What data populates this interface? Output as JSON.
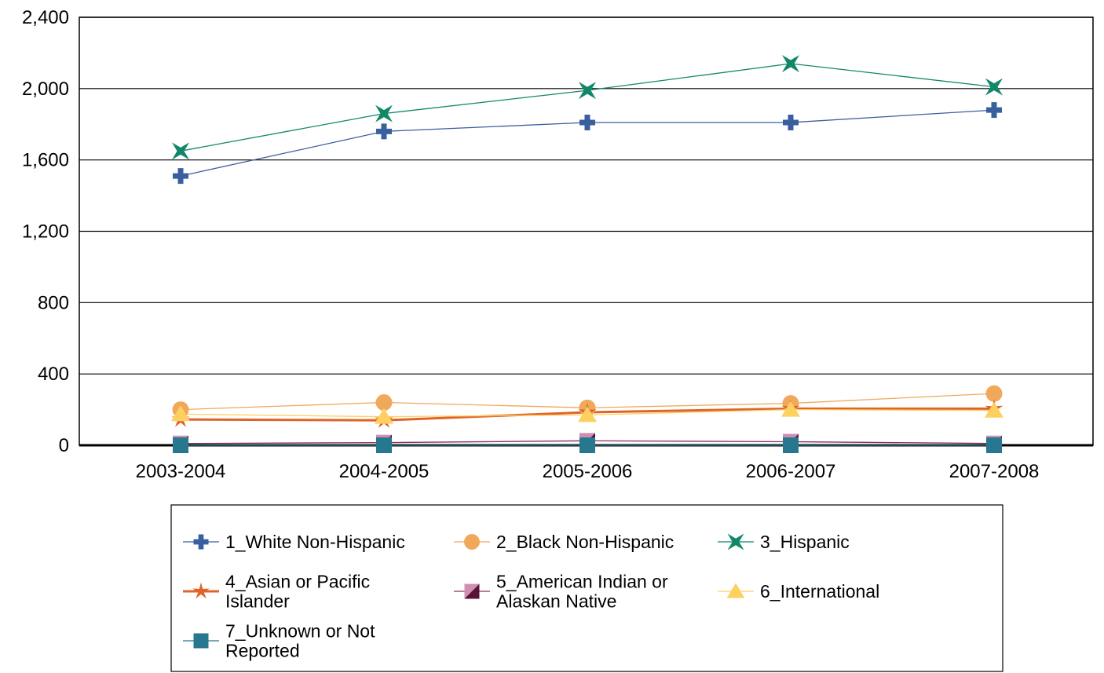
{
  "chart_data": {
    "type": "line",
    "title": "",
    "xlabel": "",
    "ylabel": "",
    "categories": [
      "2003-2004",
      "2004-2005",
      "2005-2006",
      "2006-2007",
      "2007-2008"
    ],
    "ylim": [
      0,
      2400
    ],
    "yticks": [
      0,
      400,
      800,
      1200,
      1600,
      2000,
      2400
    ],
    "ytick_labels": [
      "0",
      "400",
      "800",
      "1,200",
      "1,600",
      "2,000",
      "2,400"
    ],
    "grid": "horizontal",
    "legend_position": "bottom",
    "series": [
      {
        "name": "1_White Non-Hispanic",
        "name_lines": [
          "1_White Non-Hispanic"
        ],
        "color": "#3a5f9e",
        "marker": "plus",
        "values": [
          1510,
          1760,
          1810,
          1810,
          1880
        ]
      },
      {
        "name": "2_Black Non-Hispanic",
        "name_lines": [
          "2_Black Non-Hispanic"
        ],
        "color": "#f0a95b",
        "marker": "circle",
        "values": [
          200,
          240,
          210,
          235,
          290
        ]
      },
      {
        "name": "3_Hispanic",
        "name_lines": [
          "3_Hispanic"
        ],
        "color": "#11876a",
        "marker": "star4",
        "values": [
          1650,
          1860,
          1990,
          2140,
          2010
        ]
      },
      {
        "name": "4_Asian or Pacific Islander",
        "name_lines": [
          "4_Asian or Pacific",
          "Islander"
        ],
        "color": "#e0642a",
        "marker": "asterisk",
        "values": [
          145,
          140,
          185,
          205,
          205
        ]
      },
      {
        "name": "5_American Indian or Alaskan Native",
        "name_lines": [
          "5_American Indian or",
          "Alaskan Native"
        ],
        "color": "#8b2d5e",
        "marker": "halfsquare",
        "values": [
          10,
          15,
          25,
          20,
          10
        ]
      },
      {
        "name": "6_International",
        "name_lines": [
          "6_International"
        ],
        "color": "#fdd060",
        "marker": "triangle",
        "values": [
          175,
          160,
          170,
          200,
          195
        ]
      },
      {
        "name": "7_Unknown or Not Reported",
        "name_lines": [
          "7_Unknown or Not",
          "Reported"
        ],
        "color": "#27778f",
        "marker": "square",
        "values": [
          0,
          0,
          0,
          0,
          0
        ]
      }
    ]
  }
}
